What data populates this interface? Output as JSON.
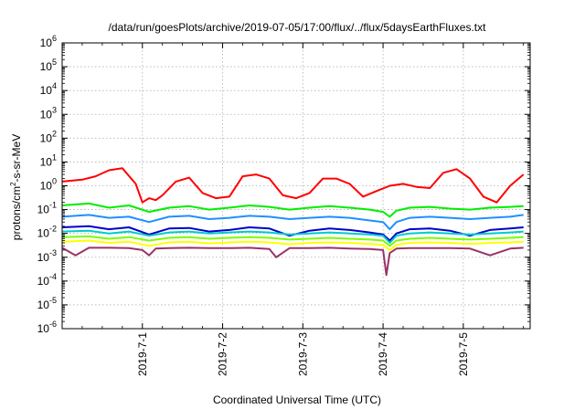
{
  "chart_data": {
    "type": "line",
    "title": "/data/run/goesPlots/archive/2019-07-05/17:00/flux/../flux/5daysEarthFluxes.txt",
    "xlabel": "Coordinated Universal Time (UTC)",
    "ylabel": {
      "base": "protons/cm",
      "sup": "2",
      "rest": "-s-sr-MeV"
    },
    "yscale": "log",
    "ylim": [
      1e-06,
      1000000.0
    ],
    "xlim": [
      "2019-06-30T00:00",
      "2019-07-05T20:00"
    ],
    "grid": true,
    "legend": "none",
    "x_tick_labels": [
      "2019-7-1",
      "2019-7-2",
      "2019-7-3",
      "2019-7-4",
      "2019-7-5"
    ],
    "y_tick_labels": [
      {
        "base": "10",
        "exp": "-6"
      },
      {
        "base": "10",
        "exp": "-5"
      },
      {
        "base": "10",
        "exp": "-4"
      },
      {
        "base": "10",
        "exp": "-3"
      },
      {
        "base": "10",
        "exp": "-2"
      },
      {
        "base": "10",
        "exp": "-1"
      },
      {
        "base": "10",
        "exp": "0"
      },
      {
        "base": "10",
        "exp": "1"
      },
      {
        "base": "10",
        "exp": "2"
      },
      {
        "base": "10",
        "exp": "3"
      },
      {
        "base": "10",
        "exp": "4"
      },
      {
        "base": "10",
        "exp": "5"
      },
      {
        "base": "10",
        "exp": "6"
      }
    ],
    "series": [
      {
        "color": "#ff0000",
        "x_hours": [
          0,
          6,
          10,
          14,
          18,
          22,
          24,
          26,
          28,
          30,
          34,
          38,
          42,
          46,
          50,
          54,
          58,
          62,
          66,
          70,
          74,
          78,
          82,
          86,
          90,
          94,
          98,
          102,
          106,
          110,
          114,
          118,
          122,
          126,
          130,
          134,
          138
        ],
        "values": [
          1.5,
          1.8,
          2.5,
          4.5,
          5.5,
          1.2,
          0.2,
          0.3,
          0.25,
          0.4,
          1.5,
          2.2,
          0.5,
          0.3,
          0.35,
          2.5,
          3,
          2,
          0.4,
          0.3,
          0.5,
          2,
          2,
          1.2,
          0.35,
          0.6,
          1,
          1.2,
          0.9,
          0.8,
          3.5,
          5,
          2,
          0.35,
          0.2,
          1,
          3
        ]
      },
      {
        "color": "#00ee00",
        "x_hours": [
          0,
          8,
          14,
          20,
          26,
          32,
          38,
          44,
          50,
          56,
          62,
          68,
          74,
          80,
          86,
          92,
          96,
          98,
          100,
          104,
          110,
          116,
          122,
          128,
          134,
          138
        ],
        "values": [
          0.15,
          0.18,
          0.12,
          0.15,
          0.08,
          0.12,
          0.14,
          0.1,
          0.12,
          0.15,
          0.13,
          0.1,
          0.12,
          0.14,
          0.12,
          0.1,
          0.08,
          0.05,
          0.09,
          0.12,
          0.13,
          0.11,
          0.1,
          0.12,
          0.13,
          0.14
        ]
      },
      {
        "color": "#1e90ff",
        "x_hours": [
          0,
          8,
          14,
          20,
          26,
          32,
          38,
          44,
          50,
          56,
          62,
          68,
          74,
          80,
          86,
          92,
          96,
          98,
          100,
          104,
          110,
          116,
          122,
          128,
          134,
          138
        ],
        "values": [
          0.05,
          0.06,
          0.045,
          0.05,
          0.03,
          0.05,
          0.055,
          0.04,
          0.045,
          0.055,
          0.05,
          0.04,
          0.045,
          0.05,
          0.045,
          0.035,
          0.03,
          0.015,
          0.03,
          0.045,
          0.05,
          0.045,
          0.04,
          0.045,
          0.05,
          0.06
        ]
      },
      {
        "color": "#00cccc",
        "x_hours": [
          0,
          8,
          14,
          20,
          26,
          32,
          38,
          44,
          50,
          56,
          62,
          68,
          74,
          80,
          86,
          92,
          96,
          98,
          100,
          104,
          110,
          116,
          122,
          128,
          134,
          138
        ],
        "values": [
          0.012,
          0.013,
          0.01,
          0.012,
          0.008,
          0.011,
          0.012,
          0.01,
          0.011,
          0.012,
          0.011,
          0.009,
          0.01,
          0.011,
          0.01,
          0.009,
          0.008,
          0.004,
          0.008,
          0.01,
          0.011,
          0.01,
          0.009,
          0.01,
          0.011,
          0.012
        ]
      },
      {
        "color": "#0000cc",
        "x_hours": [
          0,
          8,
          14,
          20,
          26,
          32,
          38,
          44,
          50,
          56,
          62,
          68,
          74,
          80,
          86,
          92,
          96,
          98,
          100,
          104,
          110,
          116,
          122,
          128,
          134,
          138
        ],
        "values": [
          0.018,
          0.02,
          0.015,
          0.018,
          0.009,
          0.016,
          0.017,
          0.012,
          0.014,
          0.018,
          0.016,
          0.008,
          0.013,
          0.016,
          0.014,
          0.011,
          0.009,
          0.005,
          0.01,
          0.015,
          0.016,
          0.013,
          0.008,
          0.014,
          0.016,
          0.018
        ]
      },
      {
        "color": "#7cfc00",
        "x_hours": [
          0,
          8,
          14,
          20,
          26,
          32,
          38,
          44,
          50,
          56,
          62,
          68,
          74,
          80,
          86,
          92,
          96,
          98,
          100,
          104,
          110,
          116,
          122,
          128,
          134,
          138
        ],
        "values": [
          0.007,
          0.0075,
          0.006,
          0.007,
          0.005,
          0.0065,
          0.007,
          0.006,
          0.0065,
          0.007,
          0.0065,
          0.0055,
          0.006,
          0.0065,
          0.006,
          0.0055,
          0.005,
          0.003,
          0.005,
          0.006,
          0.0065,
          0.006,
          0.0055,
          0.006,
          0.0065,
          0.007
        ]
      },
      {
        "color": "#ffff00",
        "x_hours": [
          0,
          8,
          14,
          20,
          26,
          32,
          38,
          44,
          50,
          56,
          62,
          68,
          74,
          80,
          86,
          92,
          96,
          98,
          100,
          104,
          110,
          116,
          122,
          128,
          134,
          138
        ],
        "values": [
          0.0045,
          0.005,
          0.004,
          0.0045,
          0.003,
          0.0042,
          0.0045,
          0.0038,
          0.0042,
          0.0045,
          0.0042,
          0.0035,
          0.004,
          0.0042,
          0.004,
          0.0036,
          0.0033,
          0.002,
          0.0033,
          0.004,
          0.0042,
          0.004,
          0.0036,
          0.004,
          0.0042,
          0.0045
        ]
      },
      {
        "color": "#993366",
        "x_hours": [
          0,
          4,
          8,
          14,
          20,
          24,
          26,
          28,
          32,
          38,
          44,
          50,
          56,
          62,
          64,
          68,
          74,
          80,
          86,
          92,
          96,
          97,
          98,
          100,
          104,
          110,
          116,
          122,
          128,
          134,
          138
        ],
        "values": [
          0.0025,
          0.0012,
          0.0025,
          0.0025,
          0.0024,
          0.002,
          0.0012,
          0.0023,
          0.0024,
          0.0025,
          0.0024,
          0.0024,
          0.0025,
          0.0022,
          0.001,
          0.0024,
          0.0024,
          0.0025,
          0.0023,
          0.0022,
          0.002,
          0.00018,
          0.0015,
          0.0023,
          0.0024,
          0.0024,
          0.0024,
          0.0023,
          0.0012,
          0.0023,
          0.0025
        ]
      }
    ]
  }
}
